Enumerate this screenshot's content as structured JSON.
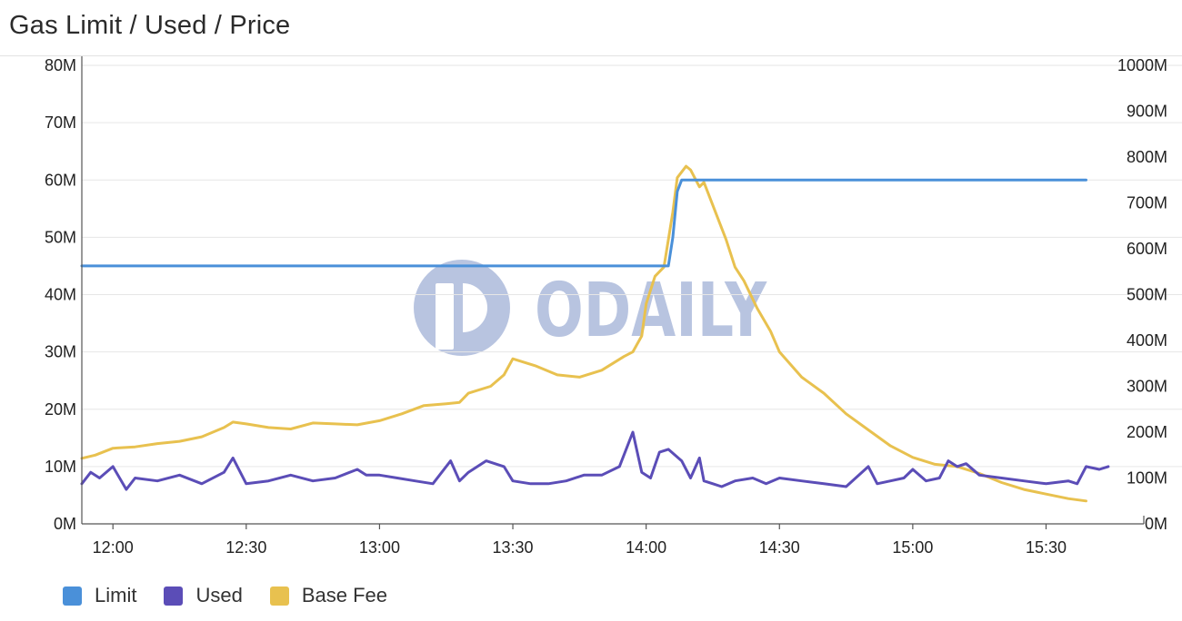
{
  "chart_data": {
    "type": "line",
    "title": "Gas Limit / Used / Price",
    "xlabel": "",
    "ylabel": "",
    "y_left_ticks": [
      "0M",
      "10M",
      "20M",
      "30M",
      "40M",
      "50M",
      "60M",
      "70M",
      "80M"
    ],
    "y_right_ticks": [
      "0M",
      "100M",
      "200M",
      "300M",
      "400M",
      "500M",
      "600M",
      "700M",
      "800M",
      "900M",
      "1000M"
    ],
    "x_ticks": [
      "12:00",
      "12:30",
      "13:00",
      "13:30",
      "14:00",
      "14:30",
      "15:00",
      "15:30"
    ],
    "ylim_left": [
      0,
      80
    ],
    "ylim_right": [
      0,
      1000
    ],
    "xlim_minutes": [
      713,
      952
    ],
    "grid": true,
    "legend_position": "bottom-left",
    "watermark": "ODAILY",
    "series": [
      {
        "name": "Limit",
        "axis": "left",
        "color": "#4a90d9",
        "x": [
          "11:53",
          "14:05",
          "14:06",
          "14:07",
          "14:08",
          "15:39",
          "15:45"
        ],
        "values": [
          45,
          45,
          50,
          58,
          60,
          60,
          60
        ]
      },
      {
        "name": "Used",
        "axis": "left",
        "color": "#5b4db7",
        "x": [
          "11:53",
          "11:55",
          "11:57",
          "12:00",
          "12:03",
          "12:05",
          "12:10",
          "12:15",
          "12:20",
          "12:25",
          "12:27",
          "12:30",
          "12:35",
          "12:40",
          "12:45",
          "12:50",
          "12:55",
          "12:57",
          "13:00",
          "13:04",
          "13:08",
          "13:12",
          "13:16",
          "13:18",
          "13:20",
          "13:24",
          "13:28",
          "13:30",
          "13:34",
          "13:38",
          "13:42",
          "13:46",
          "13:50",
          "13:54",
          "13:57",
          "13:59",
          "14:01",
          "14:03",
          "14:05",
          "14:08",
          "14:10",
          "14:12",
          "14:13",
          "14:15",
          "14:17",
          "14:20",
          "14:24",
          "14:27",
          "14:30",
          "14:35",
          "14:40",
          "14:45",
          "14:50",
          "14:52",
          "14:55",
          "14:58",
          "15:00",
          "15:03",
          "15:06",
          "15:08",
          "15:10",
          "15:12",
          "15:15",
          "15:20",
          "15:25",
          "15:30",
          "15:35",
          "15:37",
          "15:39",
          "15:42",
          "15:44"
        ],
        "values": [
          7,
          9,
          8,
          10,
          6,
          8,
          7.5,
          8.5,
          7,
          9,
          11.5,
          7,
          7.5,
          8.5,
          7.5,
          8,
          9.5,
          8.5,
          8.5,
          8,
          7.5,
          7,
          11,
          7.5,
          9,
          11,
          10,
          7.5,
          7,
          7,
          7.5,
          8.5,
          8.5,
          10,
          16,
          9,
          8,
          12.5,
          13,
          11,
          8,
          11.5,
          7.5,
          7,
          6.5,
          7.5,
          8,
          7,
          8,
          7.5,
          7,
          6.5,
          10,
          7,
          7.5,
          8,
          9.5,
          7.5,
          8,
          11,
          10,
          10.5,
          8.5,
          8,
          7.5,
          7,
          7.5,
          7,
          10,
          9.5,
          10
        ]
      },
      {
        "name": "Base Fee",
        "axis": "right",
        "color": "#e8c14f",
        "x": [
          "11:53",
          "11:56",
          "12:00",
          "12:05",
          "12:10",
          "12:15",
          "12:20",
          "12:25",
          "12:27",
          "12:30",
          "12:35",
          "12:40",
          "12:45",
          "12:50",
          "12:55",
          "13:00",
          "13:05",
          "13:10",
          "13:15",
          "13:18",
          "13:20",
          "13:25",
          "13:28",
          "13:30",
          "13:35",
          "13:40",
          "13:45",
          "13:50",
          "13:55",
          "13:57",
          "13:59",
          "14:00",
          "14:02",
          "14:04",
          "14:06",
          "14:07",
          "14:09",
          "14:10",
          "14:12",
          "14:13",
          "14:14",
          "14:16",
          "14:18",
          "14:20",
          "14:22",
          "14:25",
          "14:28",
          "14:30",
          "14:35",
          "14:40",
          "14:45",
          "14:50",
          "14:55",
          "15:00",
          "15:05",
          "15:10",
          "15:15",
          "15:20",
          "15:25",
          "15:30",
          "15:35",
          "15:39",
          "15:45"
        ],
        "values": [
          143,
          150,
          165,
          168,
          175,
          180,
          190,
          210,
          222,
          218,
          210,
          207,
          220,
          218,
          216,
          225,
          240,
          258,
          262,
          265,
          285,
          300,
          325,
          360,
          345,
          325,
          320,
          335,
          365,
          375,
          410,
          480,
          540,
          560,
          680,
          755,
          780,
          772,
          735,
          745,
          720,
          670,
          620,
          560,
          530,
          470,
          420,
          375,
          320,
          285,
          240,
          205,
          170,
          145,
          130,
          125,
          110,
          90,
          75,
          65,
          55,
          50,
          45
        ]
      }
    ]
  }
}
